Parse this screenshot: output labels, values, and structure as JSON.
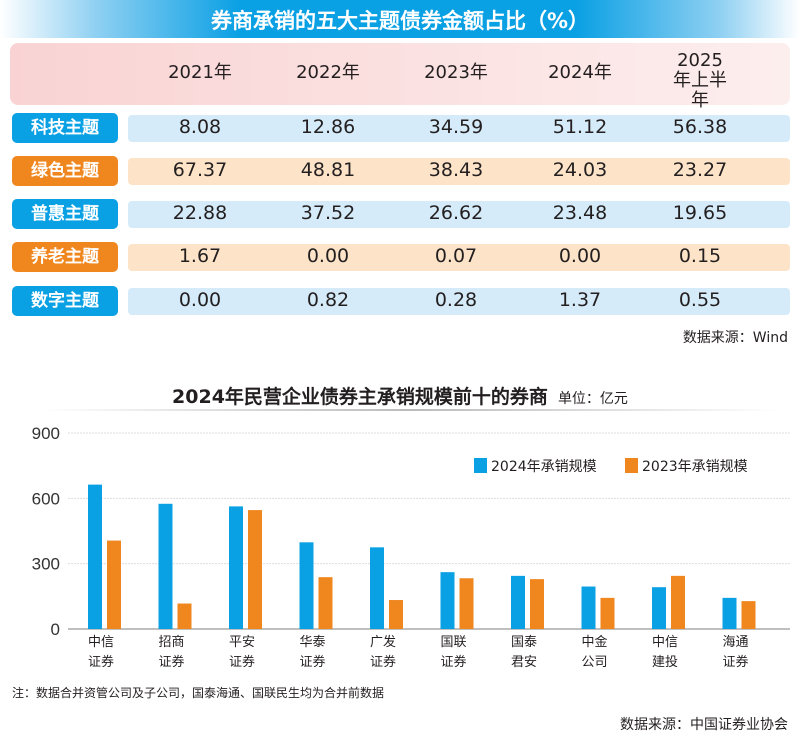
{
  "table": {
    "title": "券商承销的五大主题债券金额占比（%）",
    "columns": [
      "2021年",
      "2022年",
      "2023年",
      "2024年",
      "2025年上半年"
    ],
    "rows": [
      {
        "label": "科技主题",
        "values": [
          "8.08",
          "12.86",
          "34.59",
          "51.12",
          "56.38"
        ]
      },
      {
        "label": "绿色主题",
        "values": [
          "67.37",
          "48.81",
          "38.43",
          "24.03",
          "23.27"
        ]
      },
      {
        "label": "普惠主题",
        "values": [
          "22.88",
          "37.52",
          "26.62",
          "23.48",
          "19.65"
        ]
      },
      {
        "label": "养老主题",
        "values": [
          "1.67",
          "0.00",
          "0.07",
          "0.00",
          "0.15"
        ]
      },
      {
        "label": "数字主题",
        "values": [
          "0.00",
          "0.82",
          "0.28",
          "1.37",
          "0.55"
        ]
      }
    ],
    "source": "数据来源：Wind"
  },
  "colors": {
    "blue": "#0aa0e4",
    "orange": "#f0861e",
    "blue_bg": "#d5ebf9",
    "orange_bg": "#fde4c8"
  },
  "chart_data": {
    "type": "bar",
    "title": "2024年民营企业债券主承销规模前十的券商",
    "unit": "单位：亿元",
    "categories": [
      [
        "中信",
        "证券"
      ],
      [
        "招商",
        "证券"
      ],
      [
        "平安",
        "证券"
      ],
      [
        "华泰",
        "证券"
      ],
      [
        "广发",
        "证券"
      ],
      [
        "国联",
        "证券"
      ],
      [
        "国泰",
        "君安"
      ],
      [
        "中金",
        "公司"
      ],
      [
        "中信",
        "建投"
      ],
      [
        "海通",
        "证券"
      ]
    ],
    "series": [
      {
        "name": "2024年承销规模",
        "values": [
          663,
          575,
          563,
          398,
          375,
          261,
          244,
          195,
          192,
          143
        ]
      },
      {
        "name": "2023年承销规模",
        "values": [
          406,
          117,
          546,
          238,
          133,
          233,
          229,
          143,
          244,
          128
        ]
      }
    ],
    "yticks": [
      "0",
      "300",
      "600",
      "900"
    ],
    "ylim": [
      0,
      900
    ],
    "grid": true,
    "legend": "top-right",
    "note": "注：数据合并资管公司及子公司，国泰海通、国联民生均为合并前数据",
    "source": "数据来源：中国证券业协会"
  }
}
